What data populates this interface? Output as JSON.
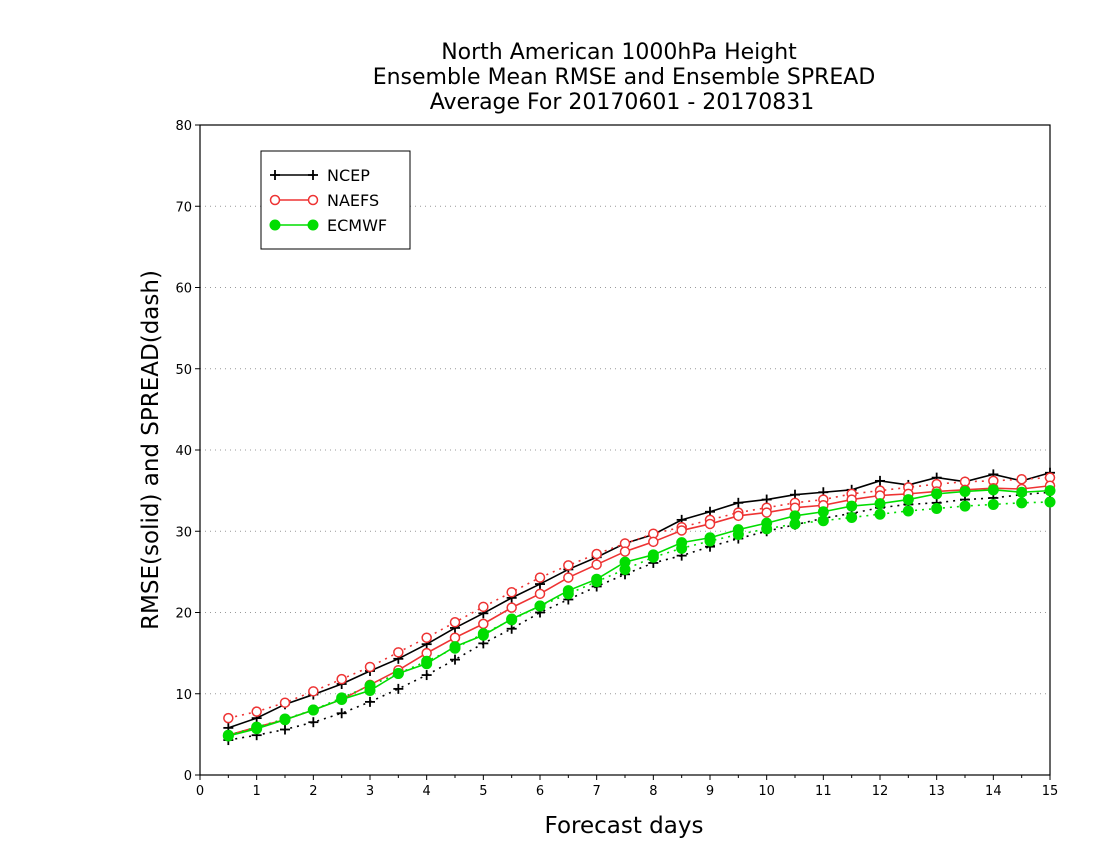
{
  "chart_data": {
    "type": "line",
    "title": [
      "North American 1000hPa Height",
      "Ensemble Mean RMSE and Ensemble SPREAD",
      "Average For 20170601 - 20170831"
    ],
    "xlabel": "Forecast days",
    "ylabel": "RMSE(solid) and SPREAD(dash)",
    "xlim": [
      0,
      15
    ],
    "ylim": [
      0,
      80
    ],
    "x_ticks": [
      0,
      1,
      2,
      3,
      4,
      5,
      6,
      7,
      8,
      9,
      10,
      11,
      12,
      13,
      14,
      15
    ],
    "y_ticks": [
      0,
      10,
      20,
      30,
      40,
      50,
      60,
      70,
      80
    ],
    "grid": "horizontal dotted",
    "legend_position": "top-left",
    "x": [
      0.5,
      1,
      1.5,
      2,
      2.5,
      3,
      3.5,
      4,
      4.5,
      5,
      5.5,
      6,
      6.5,
      7,
      7.5,
      8,
      8.5,
      9,
      9.5,
      10,
      10.5,
      11,
      11.5,
      12,
      12.5,
      13,
      13.5,
      14,
      14.5,
      15
    ],
    "series": [
      {
        "name": "NCEP",
        "color": "#000000",
        "marker": "plus",
        "rmse": [
          5.8,
          7.0,
          8.7,
          9.9,
          11.2,
          12.8,
          14.3,
          16.1,
          18.1,
          19.9,
          21.8,
          23.5,
          25.3,
          26.8,
          28.5,
          29.6,
          31.4,
          32.4,
          33.5,
          33.9,
          34.5,
          34.8,
          35.1,
          36.2,
          35.7,
          36.6,
          36.1,
          37.0,
          36.2,
          37.2
        ],
        "spread": [
          4.3,
          4.9,
          5.6,
          6.5,
          7.6,
          9.0,
          10.6,
          12.3,
          14.2,
          16.2,
          18.0,
          20.0,
          21.6,
          23.2,
          24.7,
          26.1,
          27.0,
          28.1,
          29.1,
          30.0,
          30.8,
          31.6,
          32.2,
          32.9,
          33.3,
          33.5,
          33.9,
          34.1,
          34.5,
          34.8
        ]
      },
      {
        "name": "NAEFS",
        "color": "#ee3333",
        "marker": "open-circle",
        "rmse": [
          4.9,
          5.9,
          6.8,
          8.0,
          9.3,
          11.1,
          12.9,
          15.0,
          16.9,
          18.6,
          20.6,
          22.3,
          24.3,
          25.9,
          27.5,
          28.7,
          30.1,
          30.9,
          31.9,
          32.3,
          32.9,
          33.2,
          33.9,
          34.4,
          34.6,
          34.9,
          35.1,
          35.3,
          35.2,
          35.6
        ],
        "spread": [
          7.0,
          7.8,
          8.9,
          10.3,
          11.8,
          13.3,
          15.1,
          16.9,
          18.8,
          20.7,
          22.5,
          24.3,
          25.8,
          27.2,
          28.5,
          29.7,
          30.5,
          31.4,
          32.3,
          32.9,
          33.5,
          33.9,
          34.6,
          35.0,
          35.4,
          35.8,
          36.1,
          36.2,
          36.4,
          36.6
        ]
      },
      {
        "name": "ECMWF",
        "color": "#00dd00",
        "marker": "filled-circle",
        "rmse": [
          4.8,
          5.7,
          6.8,
          8.0,
          9.3,
          10.4,
          12.5,
          13.7,
          15.8,
          17.2,
          19.2,
          20.8,
          22.7,
          24.1,
          26.2,
          27.1,
          28.6,
          29.2,
          30.2,
          31.0,
          31.9,
          32.4,
          33.1,
          33.4,
          33.9,
          34.6,
          34.9,
          35.1,
          34.8,
          35.0
        ],
        "spread": [
          4.9,
          5.9,
          6.9,
          8.0,
          9.5,
          11.0,
          12.5,
          14.0,
          15.6,
          17.4,
          19.1,
          20.8,
          22.3,
          23.8,
          25.3,
          26.8,
          27.9,
          28.8,
          29.6,
          30.3,
          30.9,
          31.3,
          31.7,
          32.1,
          32.5,
          32.8,
          33.1,
          33.3,
          33.5,
          33.6
        ]
      }
    ]
  }
}
